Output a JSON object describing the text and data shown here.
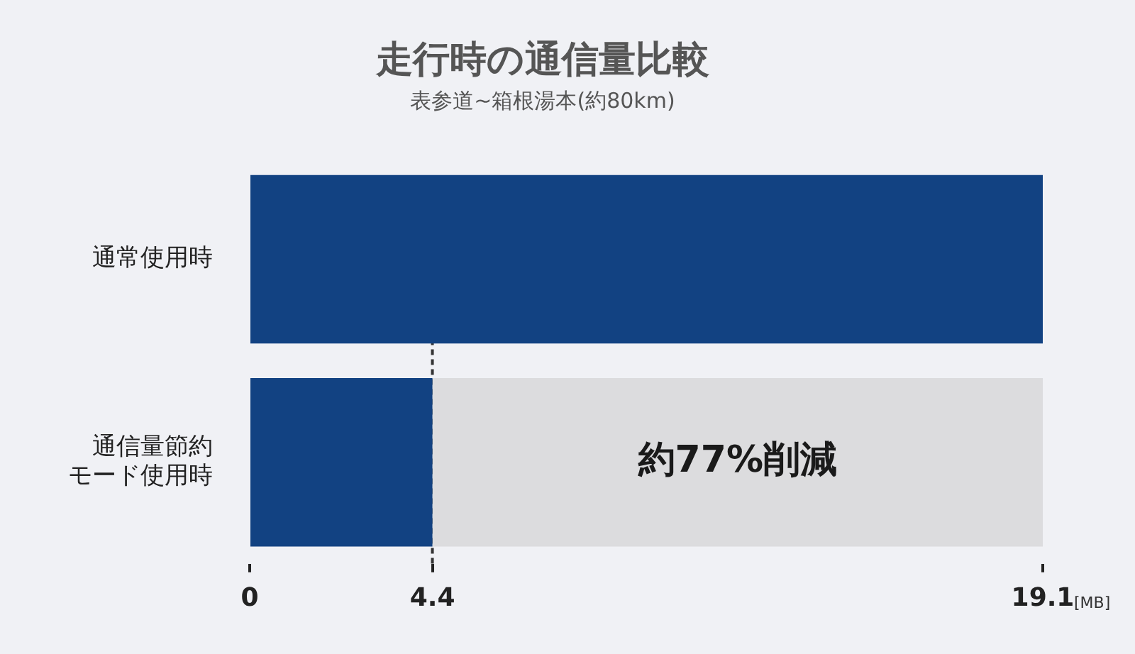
{
  "chart_data": {
    "type": "bar",
    "orientation": "horizontal",
    "stacked": true,
    "title": "走行時の通信量比較",
    "subtitle": "表参道~箱根湯本(約80km)",
    "categories": [
      "通常使用時",
      "通信量節約モード使用時"
    ],
    "ref_lines": [
      {
        "axis": "x",
        "value": 4.4,
        "color": "#333333",
        "line_style": "dashed"
      }
    ],
    "series": [
      {
        "color": "#124282",
        "values": [
          19.1,
          4.4
        ]
      },
      {
        "color": "#dcdcde",
        "values": [
          null,
          14.7
        ]
      }
    ],
    "xlabel": "[MB]",
    "xlim": [
      0,
      19.1
    ],
    "xticks": [
      0,
      4.4,
      19.1
    ],
    "annotations": [
      {
        "text": "約77%削減",
        "x": 11.75,
        "y": "通信量節約モード使用時"
      }
    ],
    "grid": false,
    "legend": false
  }
}
